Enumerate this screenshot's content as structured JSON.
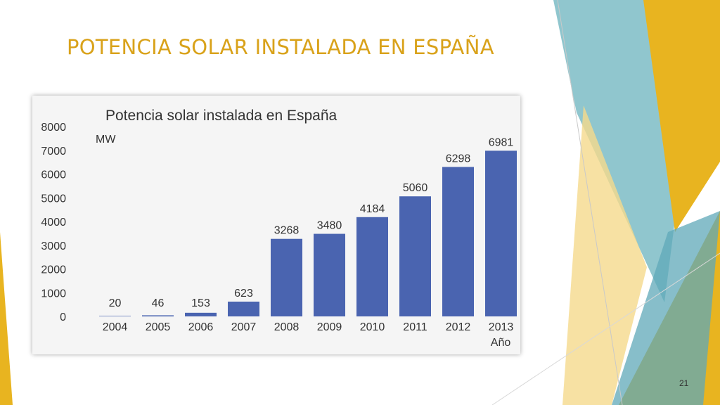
{
  "slide": {
    "title": "POTENCIA SOLAR INSTALADA EN ESPAÑA",
    "page_number": "21",
    "accent_colors": [
      "#7cbcc6",
      "#e8b420",
      "#f5d98c",
      "#5fa8b8"
    ]
  },
  "chart_data": {
    "type": "bar",
    "title": "Potencia solar instalada en España",
    "ylabel": "MW",
    "xlabel": "Año",
    "categories": [
      "2004",
      "2005",
      "2006",
      "2007",
      "2008",
      "2009",
      "2010",
      "2011",
      "2012",
      "2013"
    ],
    "values": [
      20,
      46,
      153,
      623,
      3268,
      3480,
      4184,
      5060,
      6298,
      6981
    ],
    "value_labels": [
      "20",
      "46",
      "153",
      "623",
      "3268",
      "3480",
      "4184",
      "5060",
      "6298",
      "6981"
    ],
    "ylim": [
      0,
      8000
    ],
    "yticks": [
      "0",
      "1000",
      "2000",
      "3000",
      "4000",
      "5000",
      "6000",
      "7000",
      "8000"
    ],
    "bar_color": "#4a64b0",
    "grid": false,
    "legend": "none"
  }
}
